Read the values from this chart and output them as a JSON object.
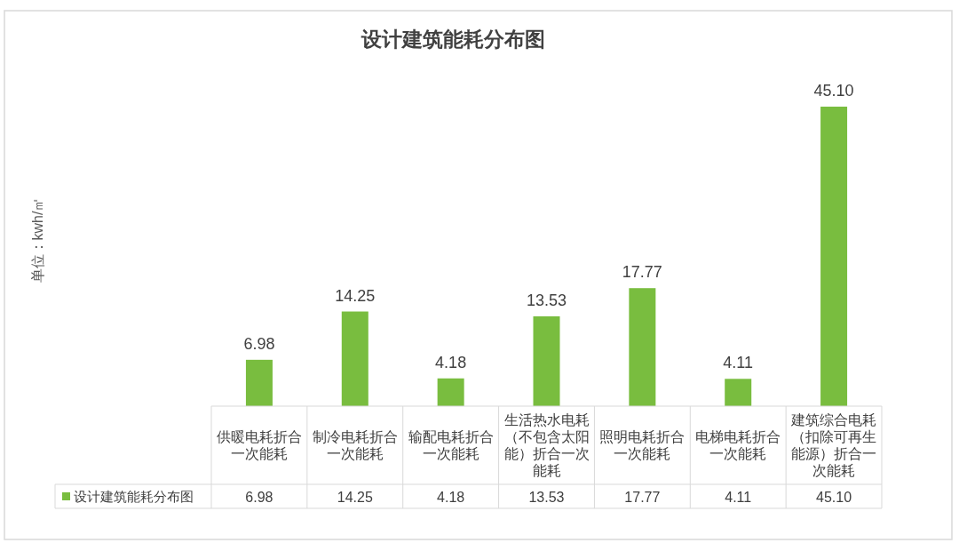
{
  "chart_data": {
    "type": "bar",
    "title": "设计建筑能耗分布图",
    "annotations": [
      "单位：kwh/㎡"
    ],
    "categories": [
      "供暖电耗折合一次能耗",
      "制冷电耗折合一次能耗",
      "输配电耗折合一次能耗",
      "生活热水电耗（不包含太阳能）折合一次能耗",
      "照明电耗折合一次能耗",
      "电梯电耗折合一次能耗",
      "建筑综合电耗（扣除可再生能源）折合一次能耗"
    ],
    "series": [
      {
        "name": "设计建筑能耗分布图",
        "color": "#79bd3f",
        "values": [
          6.98,
          14.25,
          4.18,
          13.53,
          17.77,
          4.11,
          45.1
        ],
        "value_labels": [
          "6.98",
          "14.25",
          "4.18",
          "13.53",
          "17.77",
          "4.11",
          "45.10"
        ]
      }
    ],
    "legend": "bottom"
  }
}
